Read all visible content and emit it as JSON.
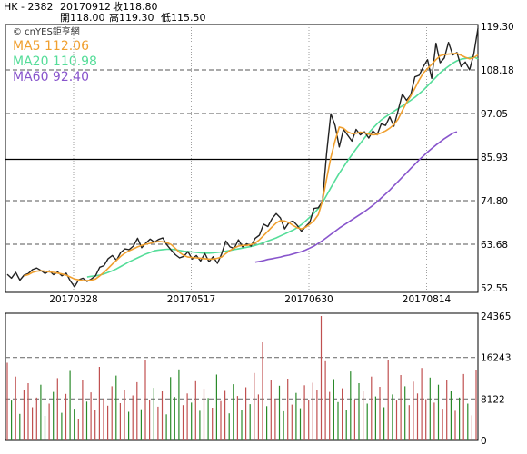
{
  "header": {
    "ticker": "HK - 2382",
    "date": "20170912",
    "close": "收118.80",
    "open": "開118.00",
    "high": "高119.30",
    "low": "低115.50"
  },
  "chart_data": [
    {
      "type": "line",
      "panel": "price",
      "brand": "© cnYES鉅亨網",
      "y_ticks": [
        "119.30",
        "108.18",
        "97.05",
        "85.93",
        "74.80",
        "63.68",
        "52.55"
      ],
      "ylim": [
        52.55,
        119.3
      ],
      "x_ticks": [
        "20170328",
        "20170517",
        "20170630",
        "20170814"
      ],
      "grid": "dashed horizontal + dotted vertical",
      "legend_placement": "top-left",
      "series": [
        {
          "name": "MA5",
          "legend": "MA5 112.06",
          "color": "#f0a030",
          "values": [
            null,
            null,
            null,
            null,
            55.6,
            55.9,
            56.5,
            56.8,
            56.9,
            56.8,
            56.6,
            56.5,
            56.3,
            56.1,
            55.8,
            55.3,
            54.8,
            54.6,
            54.4,
            54.4,
            54.5,
            54.8,
            55.6,
            56.5,
            57.5,
            58.6,
            59.6,
            60.6,
            61.4,
            62.0,
            62.5,
            63.0,
            63.4,
            63.7,
            63.9,
            64.2,
            64.4,
            64.3,
            64.1,
            63.6,
            62.6,
            61.6,
            60.8,
            60.4,
            60.3,
            60.2,
            60.1,
            60.0,
            59.9,
            59.9,
            60.1,
            60.4,
            61.3,
            62.1,
            62.7,
            63.2,
            63.4,
            63.4,
            63.6,
            64.0,
            64.8,
            65.9,
            67.0,
            68.1,
            69.1,
            69.7,
            69.6,
            69.2,
            68.5,
            67.9,
            67.6,
            68.0,
            68.8,
            69.7,
            71.2,
            74.7,
            80.4,
            85.8,
            90.1,
            93.6,
            93.3,
            92.4,
            91.9,
            92.0,
            92.3,
            92.1,
            91.8,
            91.6,
            91.7,
            92.1,
            92.6,
            93.3,
            94.2,
            95.6,
            97.8,
            99.8,
            101.5,
            103.5,
            105.6,
            107.4,
            108.5,
            109.6,
            110.8,
            111.8,
            112.1,
            112.2,
            112.3,
            112.4,
            111.9,
            111.4,
            111.0,
            111.3,
            112.0
          ]
        },
        {
          "name": "MA20",
          "legend": "MA20 110.98",
          "color": "#55dd99",
          "values": [
            null,
            null,
            null,
            null,
            null,
            null,
            null,
            null,
            null,
            null,
            null,
            null,
            null,
            null,
            null,
            null,
            null,
            null,
            null,
            55.3,
            55.5,
            55.6,
            55.8,
            56.1,
            56.5,
            56.9,
            57.4,
            58.0,
            58.6,
            59.2,
            59.7,
            60.2,
            60.7,
            61.2,
            61.6,
            62.0,
            62.2,
            62.3,
            62.4,
            62.4,
            62.3,
            62.1,
            61.9,
            61.8,
            61.7,
            61.6,
            61.5,
            61.4,
            61.4,
            61.5,
            61.6,
            61.7,
            61.9,
            62.1,
            62.3,
            62.5,
            62.7,
            62.9,
            63.1,
            63.4,
            63.7,
            64.1,
            64.5,
            64.9,
            65.3,
            65.8,
            66.3,
            66.8,
            67.3,
            67.9,
            68.7,
            69.6,
            70.6,
            71.6,
            72.8,
            74.3,
            76.2,
            78.1,
            80.0,
            81.8,
            83.4,
            85.0,
            86.5,
            88.0,
            89.4,
            90.8,
            92.1,
            93.3,
            94.4,
            95.4,
            96.2,
            96.9,
            97.6,
            98.3,
            99.0,
            99.7,
            100.4,
            101.2,
            102.1,
            103.0,
            104.1,
            105.2,
            106.3,
            107.4,
            108.3,
            109.1,
            109.9,
            110.5,
            110.9,
            111.1,
            111.3,
            111.5,
            110.98
          ]
        },
        {
          "name": "MA60",
          "legend": "MA60 92.40",
          "color": "#8855cc",
          "values": [
            null,
            null,
            null,
            null,
            null,
            null,
            null,
            null,
            null,
            null,
            null,
            null,
            null,
            null,
            null,
            null,
            null,
            null,
            null,
            null,
            null,
            null,
            null,
            null,
            null,
            null,
            null,
            null,
            null,
            null,
            null,
            null,
            null,
            null,
            null,
            null,
            null,
            null,
            null,
            null,
            null,
            null,
            null,
            null,
            null,
            null,
            null,
            null,
            null,
            null,
            null,
            null,
            null,
            null,
            null,
            null,
            null,
            null,
            null,
            59.1,
            59.3,
            59.5,
            59.8,
            60.0,
            60.2,
            60.4,
            60.7,
            60.9,
            61.2,
            61.5,
            61.8,
            62.2,
            62.7,
            63.2,
            63.9,
            64.6,
            65.4,
            66.2,
            67.0,
            67.8,
            68.5,
            69.2,
            69.9,
            70.6,
            71.3,
            72.0,
            72.8,
            73.6,
            74.5,
            75.5,
            76.5,
            77.5,
            78.6,
            79.7,
            80.8,
            81.9,
            83.0,
            84.1,
            85.2,
            86.2,
            87.2,
            88.1,
            89.0,
            89.8,
            90.6,
            91.3,
            92.0,
            92.4
          ]
        },
        {
          "name": "price",
          "color": "#222222",
          "values": [
            56.0,
            55.0,
            56.5,
            54.5,
            55.8,
            56.2,
            57.2,
            57.6,
            57.0,
            56.2,
            56.9,
            55.9,
            56.6,
            55.6,
            56.3,
            54.3,
            52.8,
            54.6,
            55.0,
            54.2,
            54.8,
            55.6,
            57.8,
            58.2,
            60.0,
            60.8,
            59.6,
            61.6,
            62.5,
            62.3,
            63.2,
            65.2,
            62.8,
            64.0,
            65.0,
            64.2,
            64.9,
            65.3,
            63.5,
            62.2,
            61.0,
            60.2,
            60.6,
            61.8,
            59.9,
            60.8,
            59.4,
            61.3,
            59.2,
            60.5,
            58.8,
            61.2,
            64.5,
            63.0,
            62.6,
            64.8,
            63.0,
            63.8,
            63.2,
            65.2,
            66.0,
            68.8,
            68.2,
            70.2,
            71.5,
            70.4,
            67.6,
            69.2,
            69.6,
            68.5,
            67.0,
            68.2,
            69.3,
            72.8,
            73.0,
            74.6,
            87.0,
            97.0,
            94.0,
            88.5,
            93.0,
            91.5,
            90.0,
            93.0,
            91.6,
            92.4,
            90.8,
            92.6,
            91.6,
            94.4,
            94.0,
            96.2,
            93.8,
            97.8,
            102.0,
            100.4,
            101.8,
            106.4,
            106.8,
            109.0,
            110.8,
            106.0,
            115.0,
            110.0,
            111.2,
            115.2,
            112.0,
            112.6,
            109.0,
            110.2,
            108.2,
            112.2,
            118.8
          ]
        }
      ]
    },
    {
      "type": "bar",
      "panel": "volume",
      "y_ticks": [
        "24365",
        "16243",
        "8122",
        "0"
      ],
      "ylim": [
        0,
        24365
      ],
      "bar_colors": {
        "up": "#c05050",
        "down": "#2a8a2a"
      },
      "values": [
        15200,
        7800,
        12500,
        5200,
        9800,
        11200,
        6500,
        8400,
        10900,
        4800,
        7200,
        9500,
        12200,
        5400,
        9100,
        13600,
        6200,
        4100,
        11800,
        7600,
        9400,
        5900,
        14400,
        8200,
        6800,
        10600,
        12700,
        7300,
        9900,
        5600,
        8800,
        11400,
        6100,
        15700,
        7900,
        10300,
        6600,
        9600,
        5100,
        12400,
        8500,
        13900,
        6900,
        9200,
        7400,
        11600,
        5800,
        10100,
        8300,
        6400,
        12900,
        7700,
        9700,
        5300,
        11000,
        8700,
        6000,
        10400,
        7100,
        13200,
        9000,
        19200,
        6700,
        11900,
        8100,
        10700,
        5700,
        12100,
        7000,
        9300,
        6300,
        10800,
        8000,
        11300,
        9900,
        26500,
        15500,
        9500,
        12000,
        7500,
        10200,
        6000,
        13500,
        8000,
        11200,
        9600,
        7200,
        12500,
        8600,
        10500,
        6500,
        15800,
        9000,
        7800,
        12800,
        10600,
        6900,
        11500,
        9200,
        14200,
        8100,
        12300,
        7400,
        10900,
        6200,
        11900,
        9600,
        5800,
        8400,
        13000,
        7200,
        4900,
        13800
      ],
      "up": [
        1,
        0,
        1,
        0,
        1,
        1,
        1,
        1,
        0,
        0,
        1,
        0,
        1,
        0,
        1,
        0,
        0,
        1,
        1,
        0,
        1,
        1,
        1,
        1,
        1,
        1,
        0,
        1,
        1,
        0,
        1,
        1,
        0,
        1,
        1,
        0,
        1,
        1,
        0,
        0,
        0,
        0,
        1,
        1,
        0,
        1,
        0,
        1,
        0,
        1,
        0,
        1,
        1,
        0,
        0,
        1,
        0,
        1,
        0,
        1,
        1,
        1,
        0,
        1,
        1,
        0,
        0,
        1,
        1,
        0,
        0,
        1,
        1,
        1,
        1,
        1,
        1,
        1,
        0,
        0,
        1,
        0,
        0,
        1,
        0,
        1,
        0,
        1,
        0,
        1,
        0,
        1,
        0,
        1,
        1,
        0,
        1,
        1,
        1,
        1,
        1,
        0,
        1,
        0,
        1,
        1,
        0,
        1,
        0,
        1,
        0,
        1,
        1
      ]
    }
  ]
}
